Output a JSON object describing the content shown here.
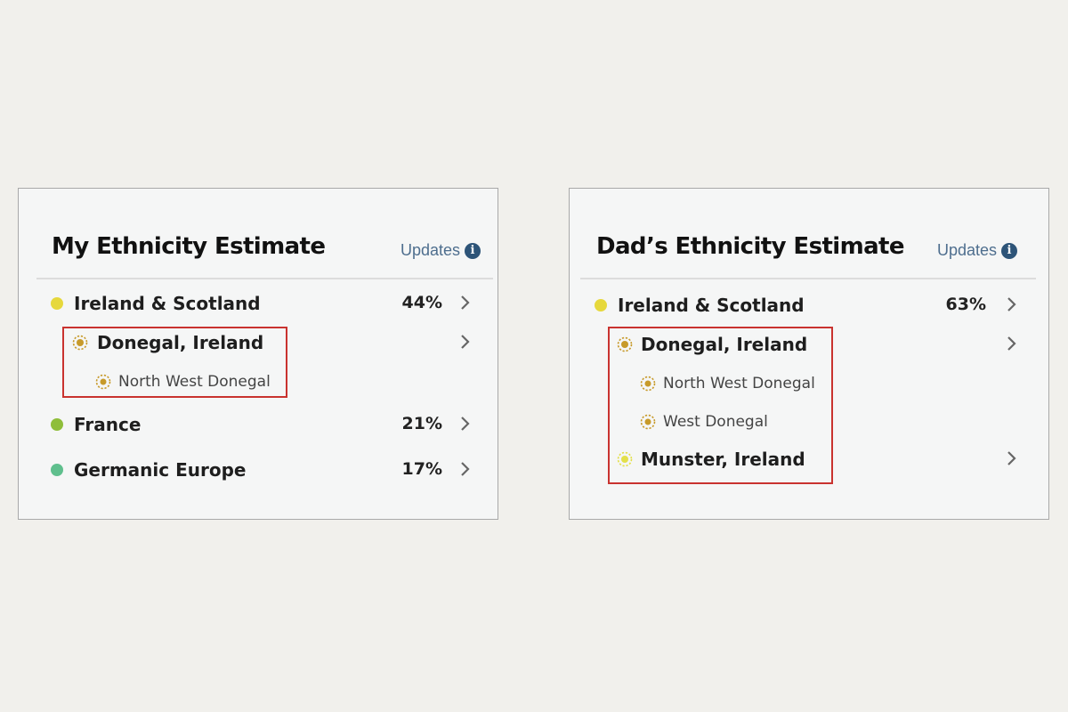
{
  "panels": [
    {
      "title": "My Ethnicity Estimate",
      "updates_label": "Updates",
      "regions": [
        {
          "name": "Ireland & Scotland",
          "percent": "44%",
          "color": "#e6d83c"
        },
        {
          "name": "France",
          "percent": "21%",
          "color": "#8fbe3a"
        },
        {
          "name": "Germanic Europe",
          "percent": "17%",
          "color": "#5fbf8d"
        }
      ],
      "communities": [
        {
          "name": "Donegal, Ireland",
          "color": "#c79a2a"
        }
      ],
      "sub_communities": [
        {
          "name": "North West Donegal",
          "color": "#c79a2a"
        }
      ]
    },
    {
      "title": "Dad’s Ethnicity Estimate",
      "updates_label": "Updates",
      "regions": [
        {
          "name": "Ireland & Scotland",
          "percent": "63%",
          "color": "#e6d83c"
        }
      ],
      "communities": [
        {
          "name": "Donegal, Ireland",
          "color": "#c79a2a"
        },
        {
          "name": "Munster, Ireland",
          "color": "#e3e04a"
        }
      ],
      "sub_communities": [
        {
          "name": "North West Donegal",
          "color": "#c79a2a"
        },
        {
          "name": "West Donegal",
          "color": "#c79a2a"
        }
      ]
    }
  ],
  "highlight_color": "#c9332f",
  "icons": {
    "info": "info-icon",
    "chevron": "chevron-right-icon",
    "community": "community-dashed-dot-icon"
  },
  "info_glyph": "i"
}
